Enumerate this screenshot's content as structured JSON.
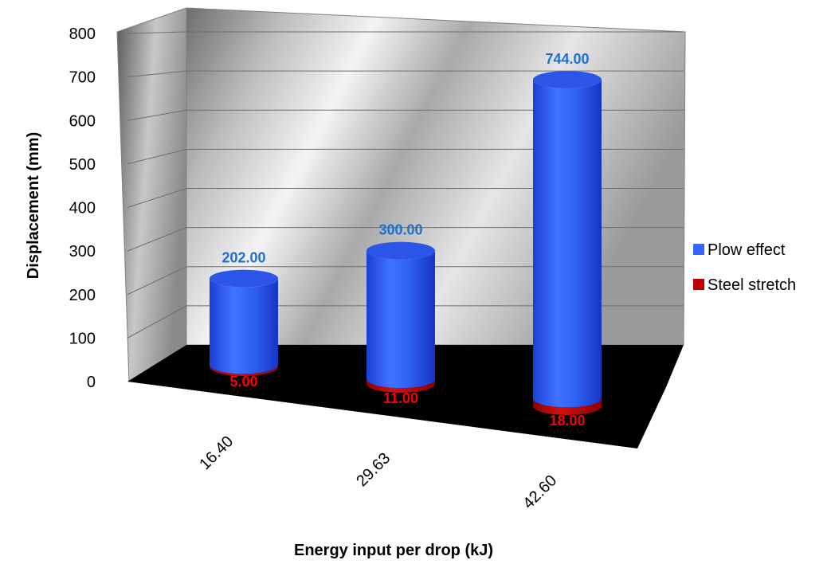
{
  "chart_data": {
    "type": "bar",
    "style": "3d-cylinder-stacked",
    "title": "",
    "xlabel": "Energy input per drop (kJ)",
    "ylabel": "Displacement (mm)",
    "ylim": [
      0,
      800
    ],
    "y_ticks": [
      "0",
      "100",
      "200",
      "300",
      "400",
      "500",
      "600",
      "700",
      "800"
    ],
    "categories": [
      "16.40",
      "29.63",
      "42.60"
    ],
    "series": [
      {
        "name": "Steel stretch",
        "values": [
          5.0,
          11.0,
          18.0
        ],
        "labels": [
          "5.00",
          "11.00",
          "18.00"
        ],
        "color": "#c00000",
        "label_color": "#ff0000"
      },
      {
        "name": "Plow effect",
        "values": [
          202.0,
          300.0,
          744.0
        ],
        "labels": [
          "202.00",
          "300.00",
          "744.00"
        ],
        "color": "#3366ff",
        "label_color": "#1f6fd1"
      }
    ],
    "legend": {
      "placement": "right",
      "items": [
        "Plow effect",
        "Steel stretch"
      ]
    },
    "grid": true
  }
}
